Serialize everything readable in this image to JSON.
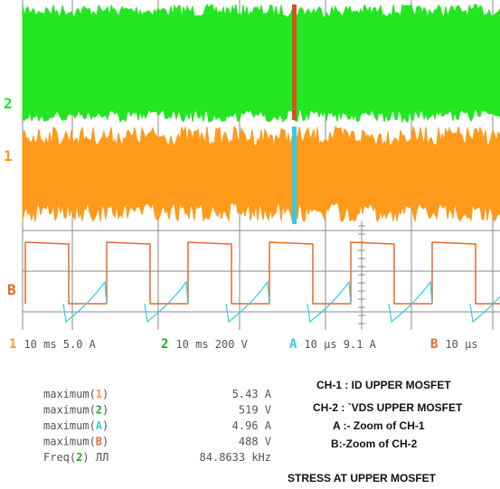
{
  "screen": {
    "trace_labels": [
      "2",
      "1",
      "B"
    ]
  },
  "status": [
    {
      "channel": "1",
      "text": "10 ms 5.0 A"
    },
    {
      "channel": "2",
      "text": "10 ms 200 V"
    },
    {
      "channel": "A",
      "text": "10 µs 9.1 A"
    },
    {
      "channel": "B",
      "text": "10 µs"
    }
  ],
  "measurements": [
    {
      "prefix": "maximum(",
      "channel": "1",
      "suffix": ")",
      "value": "5.43 A"
    },
    {
      "prefix": "maximum(",
      "channel": "2",
      "suffix": ")",
      "value": "519 V"
    },
    {
      "prefix": "maximum(",
      "channel": "A",
      "suffix": ")",
      "value": "4.96 A"
    },
    {
      "prefix": "maximum(",
      "channel": "B",
      "suffix": ")",
      "value": "488 V"
    },
    {
      "prefix": "Freq(",
      "channel": "2",
      "suffix": ")  ЛЛ",
      "value": "84.8633 kHz"
    }
  ],
  "notes": [
    "CH-1 : ID UPPER MOSFET",
    "CH-2 : `VDS UPPER MOSFET",
    "A :- Zoom of CH-1",
    "B:-Zoom of CH-2"
  ],
  "caption": "STRESS AT UPPER MOSFET"
}
